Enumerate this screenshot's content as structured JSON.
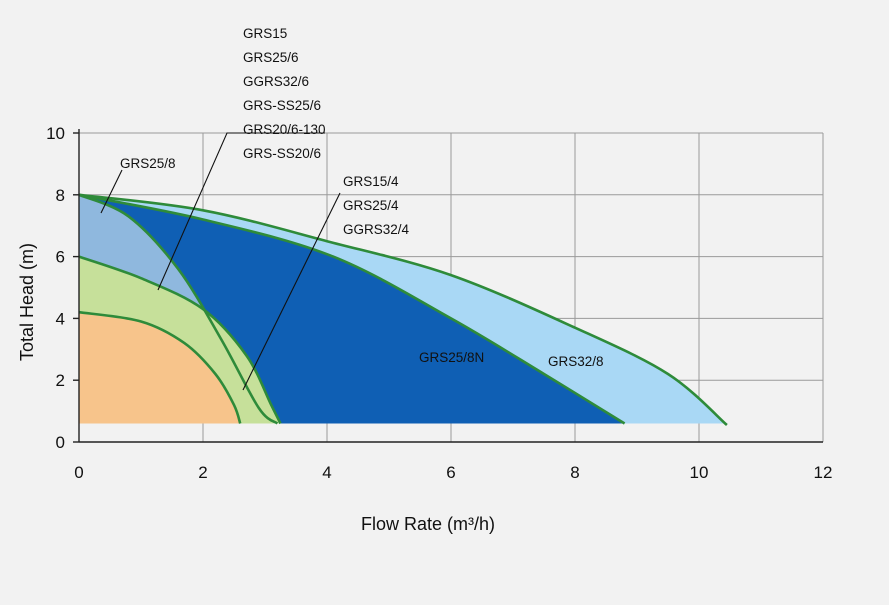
{
  "chart_data": {
    "type": "area",
    "xlabel": "Flow Rate (m³/h)",
    "ylabel": "Total  Head (m)",
    "xlim": [
      0,
      12
    ],
    "ylim": [
      0,
      10
    ],
    "x_ticks": [
      "0",
      "2",
      "4",
      "6",
      "8",
      "10",
      "12"
    ],
    "y_ticks": [
      "0",
      "2",
      "4",
      "6",
      "8",
      "10"
    ],
    "grid": true,
    "baseline": 0.6,
    "series": [
      {
        "name": "GRS32/8",
        "color": "#a9d8f5",
        "points": [
          [
            0,
            8
          ],
          [
            2,
            7.5
          ],
          [
            4,
            6.5
          ],
          [
            6,
            5.4
          ],
          [
            8,
            3.7
          ],
          [
            9.5,
            2.2
          ],
          [
            10.45,
            0.55
          ]
        ]
      },
      {
        "name": "GRS25/8N",
        "color": "#0f5fb4",
        "points": [
          [
            0,
            8
          ],
          [
            2,
            7.2
          ],
          [
            4.1,
            6
          ],
          [
            6,
            4
          ],
          [
            7.5,
            2.2
          ],
          [
            8.8,
            0.6
          ]
        ]
      },
      {
        "name": "GRS25/8",
        "color": "#8fb8de",
        "points": [
          [
            0,
            8
          ],
          [
            0.8,
            7.3
          ],
          [
            1.6,
            5.6
          ],
          [
            2.3,
            3.3
          ],
          [
            2.9,
            1.1
          ],
          [
            3.2,
            0.6
          ]
        ]
      },
      {
        "name": "GRS15 / GRS25/6 / GGRS32/6 / GRS-SS25/6 / GRS20/6-130 / GRS-SS20/6",
        "color": "#c6e09a",
        "points": [
          [
            0,
            6
          ],
          [
            1,
            5.3
          ],
          [
            2,
            4.3
          ],
          [
            2.7,
            2.8
          ],
          [
            3.1,
            1.2
          ],
          [
            3.25,
            0.6
          ]
        ]
      },
      {
        "name": "GRS15/4 / GRS25/4 / GGRS32/4",
        "color": "#f07e10",
        "points": [
          [
            0,
            4.2
          ],
          [
            1,
            3.9
          ],
          [
            1.7,
            3.2
          ],
          [
            2.2,
            2.2
          ],
          [
            2.5,
            1.2
          ],
          [
            2.6,
            0.6
          ]
        ]
      },
      {
        "name": "GRS15/4 / GRS25/4 / GGRS32/4 (region)",
        "color": "#f7c48b",
        "points": [
          [
            0,
            4.2
          ],
          [
            1,
            3.9
          ],
          [
            1.7,
            3.2
          ],
          [
            2.2,
            2.2
          ],
          [
            2.5,
            1.2
          ],
          [
            2.6,
            0.6
          ]
        ]
      }
    ],
    "annotations": {
      "group6": [
        "GRS15",
        "GRS25/6",
        "GGRS32/6",
        "GRS-SS25/6",
        "GRS20/6-130",
        "GRS-SS20/6"
      ],
      "group4": [
        "GRS15/4",
        "GRS25/4",
        "GGRS32/4"
      ],
      "grs25_8": "GRS25/8",
      "grs25_8n": "GRS25/8N",
      "grs32_8": "GRS32/8"
    }
  }
}
